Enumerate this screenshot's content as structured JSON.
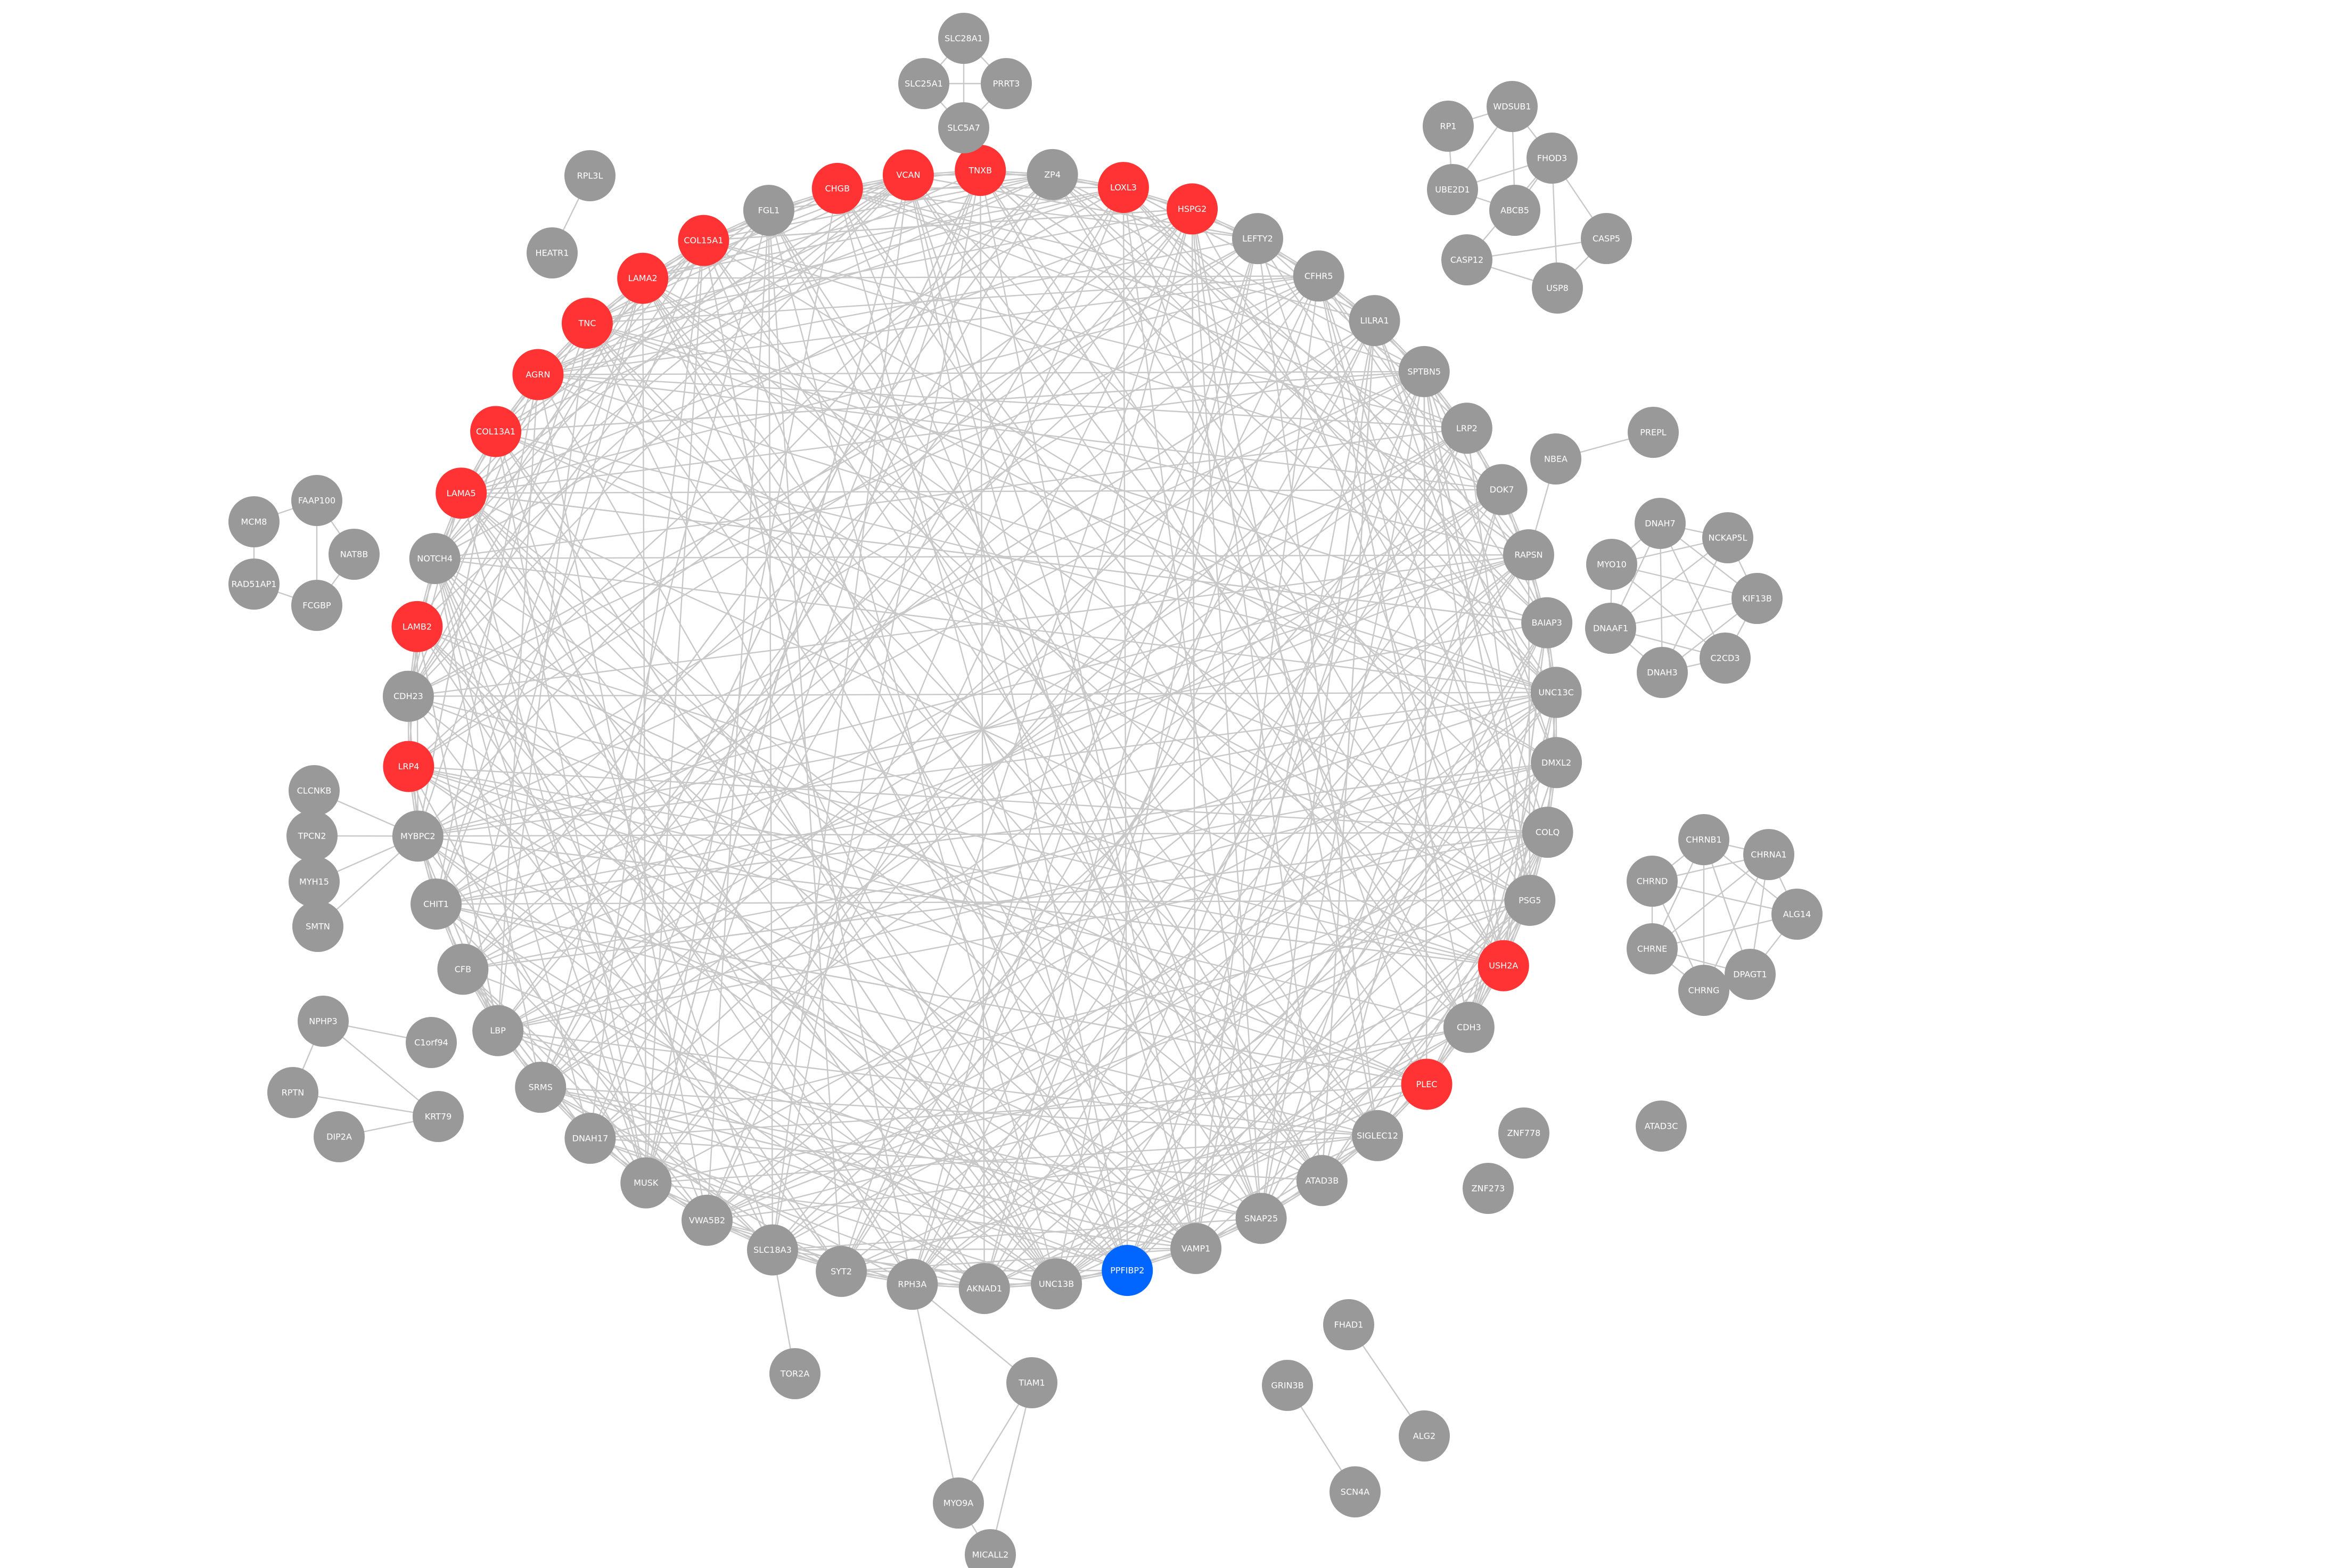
{
  "colors": {
    "background": "#ffffff",
    "default": "#999999",
    "red": "#ff3333",
    "blue": "#0066ff",
    "edge": "#c8c8c8",
    "label": "#ffffff"
  },
  "ring": {
    "nodes": [
      {
        "id": "ZP4",
        "color": "default"
      },
      {
        "id": "LOXL3",
        "color": "red"
      },
      {
        "id": "HSPG2",
        "color": "red"
      },
      {
        "id": "LEFTY2",
        "color": "default"
      },
      {
        "id": "CFHR5",
        "color": "default"
      },
      {
        "id": "LILRA1",
        "color": "default"
      },
      {
        "id": "SPTBN5",
        "color": "default"
      },
      {
        "id": "LRP2",
        "color": "default"
      },
      {
        "id": "DOK7",
        "color": "default"
      },
      {
        "id": "RAPSN",
        "color": "default"
      },
      {
        "id": "BAIAP3",
        "color": "default"
      },
      {
        "id": "UNC13C",
        "color": "default"
      },
      {
        "id": "DMXL2",
        "color": "default"
      },
      {
        "id": "COLQ",
        "color": "default"
      },
      {
        "id": "PSG5",
        "color": "default"
      },
      {
        "id": "USH2A",
        "color": "red"
      },
      {
        "id": "CDH3",
        "color": "default"
      },
      {
        "id": "PLEC",
        "color": "red"
      },
      {
        "id": "SIGLEC12",
        "color": "default"
      },
      {
        "id": "ATAD3B",
        "color": "default"
      },
      {
        "id": "SNAP25",
        "color": "default"
      },
      {
        "id": "VAMP1",
        "color": "default"
      },
      {
        "id": "PPFIBP2",
        "color": "blue"
      },
      {
        "id": "UNC13B",
        "color": "default"
      },
      {
        "id": "AKNAD1",
        "color": "default"
      },
      {
        "id": "RPH3A",
        "color": "default"
      },
      {
        "id": "SYT2",
        "color": "default"
      },
      {
        "id": "SLC18A3",
        "color": "default"
      },
      {
        "id": "VWA5B2",
        "color": "default"
      },
      {
        "id": "MUSK",
        "color": "default"
      },
      {
        "id": "DNAH17",
        "color": "default"
      },
      {
        "id": "SRMS",
        "color": "default"
      },
      {
        "id": "LBP",
        "color": "default"
      },
      {
        "id": "CFB",
        "color": "default"
      },
      {
        "id": "CHIT1",
        "color": "default"
      },
      {
        "id": "MYBPC2",
        "color": "default"
      },
      {
        "id": "LRP4",
        "color": "red"
      },
      {
        "id": "CDH23",
        "color": "default"
      },
      {
        "id": "LAMB2",
        "color": "red"
      },
      {
        "id": "NOTCH4",
        "color": "default"
      },
      {
        "id": "LAMA5",
        "color": "red"
      },
      {
        "id": "COL13A1",
        "color": "red"
      },
      {
        "id": "AGRN",
        "color": "red"
      },
      {
        "id": "TNC",
        "color": "red"
      },
      {
        "id": "LAMA2",
        "color": "red"
      },
      {
        "id": "COL15A1",
        "color": "red"
      },
      {
        "id": "FGL1",
        "color": "default"
      },
      {
        "id": "CHGB",
        "color": "red"
      },
      {
        "id": "VCAN",
        "color": "red"
      },
      {
        "id": "TNXB",
        "color": "red"
      }
    ]
  },
  "outer_nodes": [
    {
      "id": "SLC28A1"
    },
    {
      "id": "SLC25A1"
    },
    {
      "id": "PRRT3"
    },
    {
      "id": "SLC5A7"
    },
    {
      "id": "RPL3L"
    },
    {
      "id": "HEATR1"
    },
    {
      "id": "RP1"
    },
    {
      "id": "WDSUB1"
    },
    {
      "id": "FHOD3"
    },
    {
      "id": "UBE2D1"
    },
    {
      "id": "ABCB5"
    },
    {
      "id": "CASP5"
    },
    {
      "id": "CASP12"
    },
    {
      "id": "USP8"
    },
    {
      "id": "NBEA"
    },
    {
      "id": "PREPL"
    },
    {
      "id": "DNAH7"
    },
    {
      "id": "NCKAP5L"
    },
    {
      "id": "MYO10"
    },
    {
      "id": "KIF13B"
    },
    {
      "id": "DNAAF1"
    },
    {
      "id": "C2CD3"
    },
    {
      "id": "DNAH3"
    },
    {
      "id": "MCM8"
    },
    {
      "id": "FAAP100"
    },
    {
      "id": "NAT8B"
    },
    {
      "id": "RAD51AP1"
    },
    {
      "id": "FCGBP"
    },
    {
      "id": "CLCNKB"
    },
    {
      "id": "TPCN2"
    },
    {
      "id": "MYH15"
    },
    {
      "id": "SMTN"
    },
    {
      "id": "CHRNB1"
    },
    {
      "id": "CHRNA1"
    },
    {
      "id": "CHRND"
    },
    {
      "id": "ALG14"
    },
    {
      "id": "CHRNE"
    },
    {
      "id": "DPAGT1"
    },
    {
      "id": "CHRNG"
    },
    {
      "id": "NPHP3"
    },
    {
      "id": "C1orf94"
    },
    {
      "id": "RPTN"
    },
    {
      "id": "KRT79"
    },
    {
      "id": "DIP2A"
    },
    {
      "id": "ZNF778"
    },
    {
      "id": "ZNF273"
    },
    {
      "id": "ATAD3C"
    },
    {
      "id": "TOR2A"
    },
    {
      "id": "TIAM1"
    },
    {
      "id": "MYO9A"
    },
    {
      "id": "MICALL2"
    },
    {
      "id": "FHAD1"
    },
    {
      "id": "ALG2"
    },
    {
      "id": "GRIN3B"
    },
    {
      "id": "SCN4A"
    }
  ],
  "edges": [
    [
      "SLC28A1",
      "SLC25A1"
    ],
    [
      "SLC28A1",
      "PRRT3"
    ],
    [
      "SLC28A1",
      "SLC5A7"
    ],
    [
      "SLC25A1",
      "PRRT3"
    ],
    [
      "SLC25A1",
      "SLC5A7"
    ],
    [
      "PRRT3",
      "SLC5A7"
    ],
    [
      "RPL3L",
      "HEATR1"
    ],
    [
      "RP1",
      "WDSUB1"
    ],
    [
      "RP1",
      "UBE2D1"
    ],
    [
      "WDSUB1",
      "UBE2D1"
    ],
    [
      "WDSUB1",
      "FHOD3"
    ],
    [
      "WDSUB1",
      "ABCB5"
    ],
    [
      "UBE2D1",
      "FHOD3"
    ],
    [
      "UBE2D1",
      "ABCB5"
    ],
    [
      "FHOD3",
      "ABCB5"
    ],
    [
      "FHOD3",
      "CASP5"
    ],
    [
      "FHOD3",
      "USP8"
    ],
    [
      "FHOD3",
      "CASP12"
    ],
    [
      "CASP5",
      "CASP12"
    ],
    [
      "CASP5",
      "USP8"
    ],
    [
      "CASP12",
      "USP8"
    ],
    [
      "NBEA",
      "PREPL"
    ],
    [
      "NBEA",
      "RAPSN"
    ],
    [
      "DNAH7",
      "NCKAP5L"
    ],
    [
      "DNAH7",
      "MYO10"
    ],
    [
      "DNAH7",
      "KIF13B"
    ],
    [
      "DNAH7",
      "DNAAF1"
    ],
    [
      "DNAH7",
      "C2CD3"
    ],
    [
      "DNAH7",
      "DNAH3"
    ],
    [
      "NCKAP5L",
      "KIF13B"
    ],
    [
      "NCKAP5L",
      "MYO10"
    ],
    [
      "NCKAP5L",
      "DNAAF1"
    ],
    [
      "NCKAP5L",
      "DNAH3"
    ],
    [
      "MYO10",
      "DNAAF1"
    ],
    [
      "MYO10",
      "KIF13B"
    ],
    [
      "MYO10",
      "C2CD3"
    ],
    [
      "KIF13B",
      "C2CD3"
    ],
    [
      "KIF13B",
      "DNAAF1"
    ],
    [
      "DNAAF1",
      "DNAH3"
    ],
    [
      "DNAAF1",
      "C2CD3"
    ],
    [
      "C2CD3",
      "DNAH3"
    ],
    [
      "KIF13B",
      "DNAH3"
    ],
    [
      "MCM8",
      "FAAP100"
    ],
    [
      "MCM8",
      "RAD51AP1"
    ],
    [
      "FAAP100",
      "NAT8B"
    ],
    [
      "FAAP100",
      "FCGBP"
    ],
    [
      "RAD51AP1",
      "FCGBP"
    ],
    [
      "NAT8B",
      "FCGBP"
    ],
    [
      "CLCNKB",
      "MYBPC2"
    ],
    [
      "TPCN2",
      "MYBPC2"
    ],
    [
      "MYH15",
      "MYBPC2"
    ],
    [
      "SMTN",
      "MYBPC2"
    ],
    [
      "CHRNB1",
      "CHRNA1"
    ],
    [
      "CHRNB1",
      "CHRND"
    ],
    [
      "CHRNB1",
      "CHRNE"
    ],
    [
      "CHRNB1",
      "CHRNG"
    ],
    [
      "CHRNB1",
      "DPAGT1"
    ],
    [
      "CHRNB1",
      "ALG14"
    ],
    [
      "CHRNA1",
      "ALG14"
    ],
    [
      "CHRNA1",
      "CHRND"
    ],
    [
      "CHRNA1",
      "CHRNE"
    ],
    [
      "CHRNA1",
      "CHRNG"
    ],
    [
      "CHRNA1",
      "DPAGT1"
    ],
    [
      "CHRND",
      "CHRNE"
    ],
    [
      "CHRND",
      "CHRNG"
    ],
    [
      "CHRND",
      "ALG14"
    ],
    [
      "CHRNE",
      "CHRNG"
    ],
    [
      "CHRNE",
      "ALG14"
    ],
    [
      "CHRNG",
      "DPAGT1"
    ],
    [
      "ALG14",
      "DPAGT1"
    ],
    [
      "CHRNE",
      "DPAGT1"
    ],
    [
      "NPHP3",
      "C1orf94"
    ],
    [
      "NPHP3",
      "KRT79"
    ],
    [
      "NPHP3",
      "RPTN"
    ],
    [
      "RPTN",
      "KRT79"
    ],
    [
      "KRT79",
      "DIP2A"
    ],
    [
      "SLC18A3",
      "TOR2A"
    ],
    [
      "RPH3A",
      "TIAM1"
    ],
    [
      "RPH3A",
      "MYO9A"
    ],
    [
      "TIAM1",
      "MYO9A"
    ],
    [
      "TIAM1",
      "MICALL2"
    ],
    [
      "MYO9A",
      "MICALL2"
    ],
    [
      "FHAD1",
      "ALG2"
    ],
    [
      "GRIN3B",
      "SCN4A"
    ]
  ]
}
